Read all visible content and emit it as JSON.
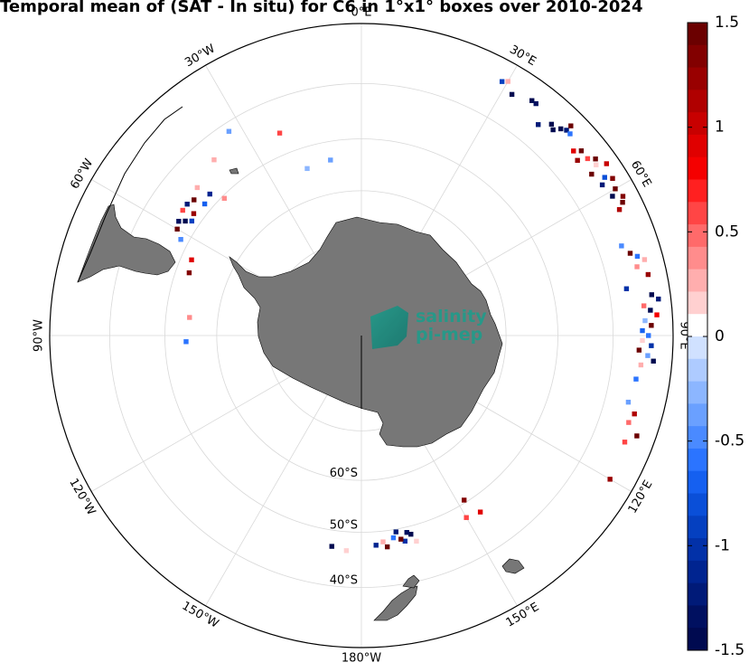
{
  "title": "Temporal mean of (SAT - In situ) for C6 in 1°x1° boxes over 2010-2024",
  "logo": {
    "line1": "salinity",
    "line2": "pi-mep"
  },
  "map": {
    "projection": "south-polar-stereographic",
    "center": "South Pole",
    "land_color": "#777777",
    "longitude_labels": [
      {
        "text": "0°E",
        "lon": 0
      },
      {
        "text": "30°E",
        "lon": 30
      },
      {
        "text": "60°E",
        "lon": 60
      },
      {
        "text": "90°E",
        "lon": 90
      },
      {
        "text": "120°E",
        "lon": 120
      },
      {
        "text": "150°E",
        "lon": 150
      },
      {
        "text": "180°W",
        "lon": 180
      },
      {
        "text": "150°W",
        "lon": -150
      },
      {
        "text": "120°W",
        "lon": -120
      },
      {
        "text": "90°W",
        "lon": -90
      },
      {
        "text": "60°W",
        "lon": -60
      },
      {
        "text": "30°W",
        "lon": -30
      }
    ],
    "latitude_labels": [
      {
        "text": "60°S",
        "lat": -60
      },
      {
        "text": "50°S",
        "lat": -50
      },
      {
        "text": "40°S",
        "lat": -40
      }
    ],
    "grid_latitudes": [
      -70,
      -60,
      -50,
      -40,
      -30
    ]
  },
  "colorbar": {
    "min": -1.5,
    "max": 1.5,
    "ticks": [
      "1.5",
      "1",
      "0.5",
      "0",
      "-0.5",
      "-1",
      "-1.5"
    ],
    "tick_values": [
      1.5,
      1,
      0.5,
      0,
      -0.5,
      -1,
      -1.5
    ],
    "colors_top_to_bottom": [
      "#6b0000",
      "#820000",
      "#990000",
      "#b00000",
      "#c80000",
      "#e00000",
      "#f50000",
      "#ff2020",
      "#ff4545",
      "#ff6a6a",
      "#ff8c8c",
      "#ffaeae",
      "#ffd0d0",
      "#ffffff",
      "#d0e1ff",
      "#aecbff",
      "#8cb6ff",
      "#6aa0ff",
      "#4a8aff",
      "#2b74ff",
      "#1560f0",
      "#0a4fd8",
      "#0540c0",
      "#0231a8",
      "#002490",
      "#001a78",
      "#001060",
      "#000a50"
    ]
  },
  "chart_data": {
    "type": "heatmap",
    "title": "Temporal mean of (SAT - In situ) for C6 in 1°x1° boxes over 2010-2024",
    "value_range": [
      -1.5,
      1.5
    ],
    "cells": [
      {
        "lon": 29,
        "lat": -33.5,
        "v": -0.9
      },
      {
        "lon": 30,
        "lat": -33.0,
        "v": 0.3
      },
      {
        "lon": 32,
        "lat": -34.5,
        "v": -1.4
      },
      {
        "lon": 36,
        "lat": -33.5,
        "v": -1.4
      },
      {
        "lon": 37,
        "lat": -33.5,
        "v": -1.3
      },
      {
        "lon": 40,
        "lat": -36.0,
        "v": -1.2
      },
      {
        "lon": 42,
        "lat": -34.5,
        "v": -1.5
      },
      {
        "lon": 43,
        "lat": -35.0,
        "v": -1.5
      },
      {
        "lon": 44,
        "lat": -34.0,
        "v": -1.5
      },
      {
        "lon": 45,
        "lat": -33.5,
        "v": -1.2
      },
      {
        "lon": 46,
        "lat": -33.5,
        "v": -0.6
      },
      {
        "lon": 45,
        "lat": -32.5,
        "v": 1.4
      },
      {
        "lon": 49,
        "lat": -35.0,
        "v": 0.9
      },
      {
        "lon": 50,
        "lat": -34.0,
        "v": 1.4
      },
      {
        "lon": 51,
        "lat": -35.5,
        "v": 1.2
      },
      {
        "lon": 52,
        "lat": -34.0,
        "v": 0.6
      },
      {
        "lon": 53,
        "lat": -33.0,
        "v": 1.5
      },
      {
        "lon": 54,
        "lat": -33.5,
        "v": 0.2
      },
      {
        "lon": 55,
        "lat": -35.0,
        "v": 1.5
      },
      {
        "lon": 55,
        "lat": -32.0,
        "v": 1.0
      },
      {
        "lon": 57,
        "lat": -33.5,
        "v": -0.8
      },
      {
        "lon": 58,
        "lat": -34.5,
        "v": -1.2
      },
      {
        "lon": 58,
        "lat": -32.5,
        "v": 1.3
      },
      {
        "lon": 60,
        "lat": -33.0,
        "v": 1.5
      },
      {
        "lon": 61,
        "lat": -34.0,
        "v": -1.5
      },
      {
        "lon": 62,
        "lat": -32.5,
        "v": 1.3
      },
      {
        "lon": 63,
        "lat": -33.0,
        "v": 1.5
      },
      {
        "lon": 64,
        "lat": -34.0,
        "v": 1.1
      },
      {
        "lon": 71,
        "lat": -36.0,
        "v": -0.5
      },
      {
        "lon": 73,
        "lat": -35.0,
        "v": 1.5
      },
      {
        "lon": 74,
        "lat": -34.0,
        "v": -0.6
      },
      {
        "lon": 75,
        "lat": -33.0,
        "v": 0.3
      },
      {
        "lon": 76,
        "lat": -34.5,
        "v": 0.4
      },
      {
        "lon": 78,
        "lat": -33.0,
        "v": 1.2
      },
      {
        "lon": 80,
        "lat": -37.0,
        "v": -1.0
      },
      {
        "lon": 82,
        "lat": -33.0,
        "v": -1.4
      },
      {
        "lon": 83,
        "lat": -32.0,
        "v": -1.2
      },
      {
        "lon": 84,
        "lat": -34.5,
        "v": 0.5
      },
      {
        "lon": 85,
        "lat": -33.5,
        "v": -1.5
      },
      {
        "lon": 86,
        "lat": -32.5,
        "v": 0.8
      },
      {
        "lon": 87,
        "lat": -34.5,
        "v": -0.3
      },
      {
        "lon": 88,
        "lat": -33.5,
        "v": 1.4
      },
      {
        "lon": 89,
        "lat": -35.0,
        "v": -0.7
      },
      {
        "lon": 90,
        "lat": -34.0,
        "v": -0.6
      },
      {
        "lon": 91,
        "lat": -35.0,
        "v": 0.2
      },
      {
        "lon": 92,
        "lat": -33.5,
        "v": -1.0
      },
      {
        "lon": 93,
        "lat": -35.5,
        "v": 1.5
      },
      {
        "lon": 94,
        "lat": -34.0,
        "v": -0.4
      },
      {
        "lon": 95,
        "lat": -33.0,
        "v": -1.4
      },
      {
        "lon": 96,
        "lat": -35.0,
        "v": 0.3
      },
      {
        "lon": 99,
        "lat": -35.5,
        "v": -0.6
      },
      {
        "lon": 104,
        "lat": -36.0,
        "v": -0.4
      },
      {
        "lon": 106,
        "lat": -34.5,
        "v": 1.1
      },
      {
        "lon": 108,
        "lat": -35.0,
        "v": 0.5
      },
      {
        "lon": 110,
        "lat": -33.0,
        "v": 1.4
      },
      {
        "lon": 112,
        "lat": -34.5,
        "v": 0.6
      },
      {
        "lon": 120,
        "lat": -34.0,
        "v": 1.2
      },
      {
        "lon": 146,
        "lat": -47.0,
        "v": 0.9
      },
      {
        "lon": 148,
        "lat": -50.5,
        "v": 1.3
      },
      {
        "lon": 150,
        "lat": -47.5,
        "v": 0.6
      },
      {
        "lon": 165,
        "lat": -47.0,
        "v": 0.2
      },
      {
        "lon": 166,
        "lat": -48.5,
        "v": -1.5
      },
      {
        "lon": 167,
        "lat": -49.0,
        "v": -1.3
      },
      {
        "lon": 168,
        "lat": -47.5,
        "v": -1.0
      },
      {
        "lon": 169,
        "lat": -48.0,
        "v": 1.4
      },
      {
        "lon": 170,
        "lat": -49.5,
        "v": -1.2
      },
      {
        "lon": 171,
        "lat": -48.5,
        "v": -0.6
      },
      {
        "lon": 173,
        "lat": -47.0,
        "v": 1.5
      },
      {
        "lon": 174,
        "lat": -48.0,
        "v": 0.3
      },
      {
        "lon": 176,
        "lat": -47.5,
        "v": -1.1
      },
      {
        "lon": -176,
        "lat": -46.5,
        "v": 0.2
      },
      {
        "lon": -172,
        "lat": -47.0,
        "v": -1.5
      },
      {
        "lon": -92,
        "lat": -54.0,
        "v": -0.6
      },
      {
        "lon": -84,
        "lat": -54.5,
        "v": 0.4
      },
      {
        "lon": -70,
        "lat": -52.5,
        "v": 1.3
      },
      {
        "lon": -66,
        "lat": -52.0,
        "v": 0.9
      },
      {
        "lon": -62,
        "lat": -48.5,
        "v": -0.5
      },
      {
        "lon": -60,
        "lat": -47.0,
        "v": 1.4
      },
      {
        "lon": -58,
        "lat": -46.5,
        "v": -1.3
      },
      {
        "lon": -57,
        "lat": -47.5,
        "v": -1.5
      },
      {
        "lon": -56,
        "lat": -48.5,
        "v": -0.9
      },
      {
        "lon": -55,
        "lat": -46.0,
        "v": 0.6
      },
      {
        "lon": -54,
        "lat": -48.0,
        "v": 1.2
      },
      {
        "lon": -53,
        "lat": -46.0,
        "v": -1.2
      },
      {
        "lon": -51,
        "lat": -46.5,
        "v": 1.5
      },
      {
        "lon": -50,
        "lat": -48.5,
        "v": -0.7
      },
      {
        "lon": -47,
        "lat": -48.0,
        "v": -1.1
      },
      {
        "lon": -48,
        "lat": -45.5,
        "v": 0.3
      },
      {
        "lon": -45,
        "lat": -50.5,
        "v": 0.4
      },
      {
        "lon": -40,
        "lat": -44.0,
        "v": 0.3
      },
      {
        "lon": -33,
        "lat": -41.5,
        "v": -0.4
      },
      {
        "lon": -22,
        "lat": -46.0,
        "v": 0.6
      },
      {
        "lon": -18,
        "lat": -54.0,
        "v": -0.3
      },
      {
        "lon": -10,
        "lat": -53.5,
        "v": -0.4
      }
    ]
  }
}
